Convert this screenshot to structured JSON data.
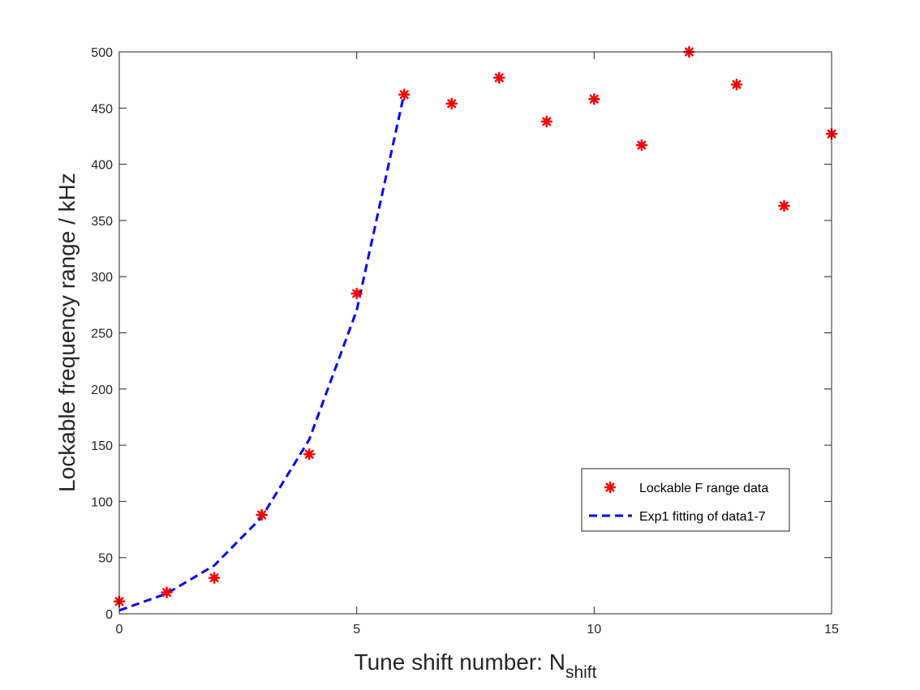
{
  "chart_data": {
    "type": "scatter",
    "title": "",
    "xlabel": "Tune shift number: N",
    "xlabel_subscript": "shift",
    "ylabel": "Lockable frequency range / kHz",
    "xlim": [
      0,
      15
    ],
    "ylim": [
      0,
      500
    ],
    "xticks": [
      0,
      5,
      10,
      15
    ],
    "yticks": [
      0,
      50,
      100,
      150,
      200,
      250,
      300,
      350,
      400,
      450,
      500
    ],
    "grid": false,
    "legend_position": "lower-right",
    "series": [
      {
        "name": "Lockable F range data",
        "kind": "scatter",
        "marker": "asterisk",
        "color": "#ff0000",
        "x": [
          0,
          1,
          2,
          3,
          4,
          5,
          6,
          7,
          8,
          9,
          10,
          11,
          12,
          13,
          14,
          15
        ],
        "y": [
          11,
          19,
          32,
          88,
          142,
          285,
          462,
          454,
          477,
          438,
          458,
          417,
          500,
          471,
          363,
          427
        ]
      },
      {
        "name": "Exp1 fitting of data1-7",
        "kind": "line",
        "dash": "dashed",
        "color": "#0000ff",
        "x": [
          0,
          1,
          2,
          3,
          4,
          5,
          6
        ],
        "y": [
          3,
          18,
          43,
          86,
          155,
          270,
          463
        ]
      }
    ]
  }
}
